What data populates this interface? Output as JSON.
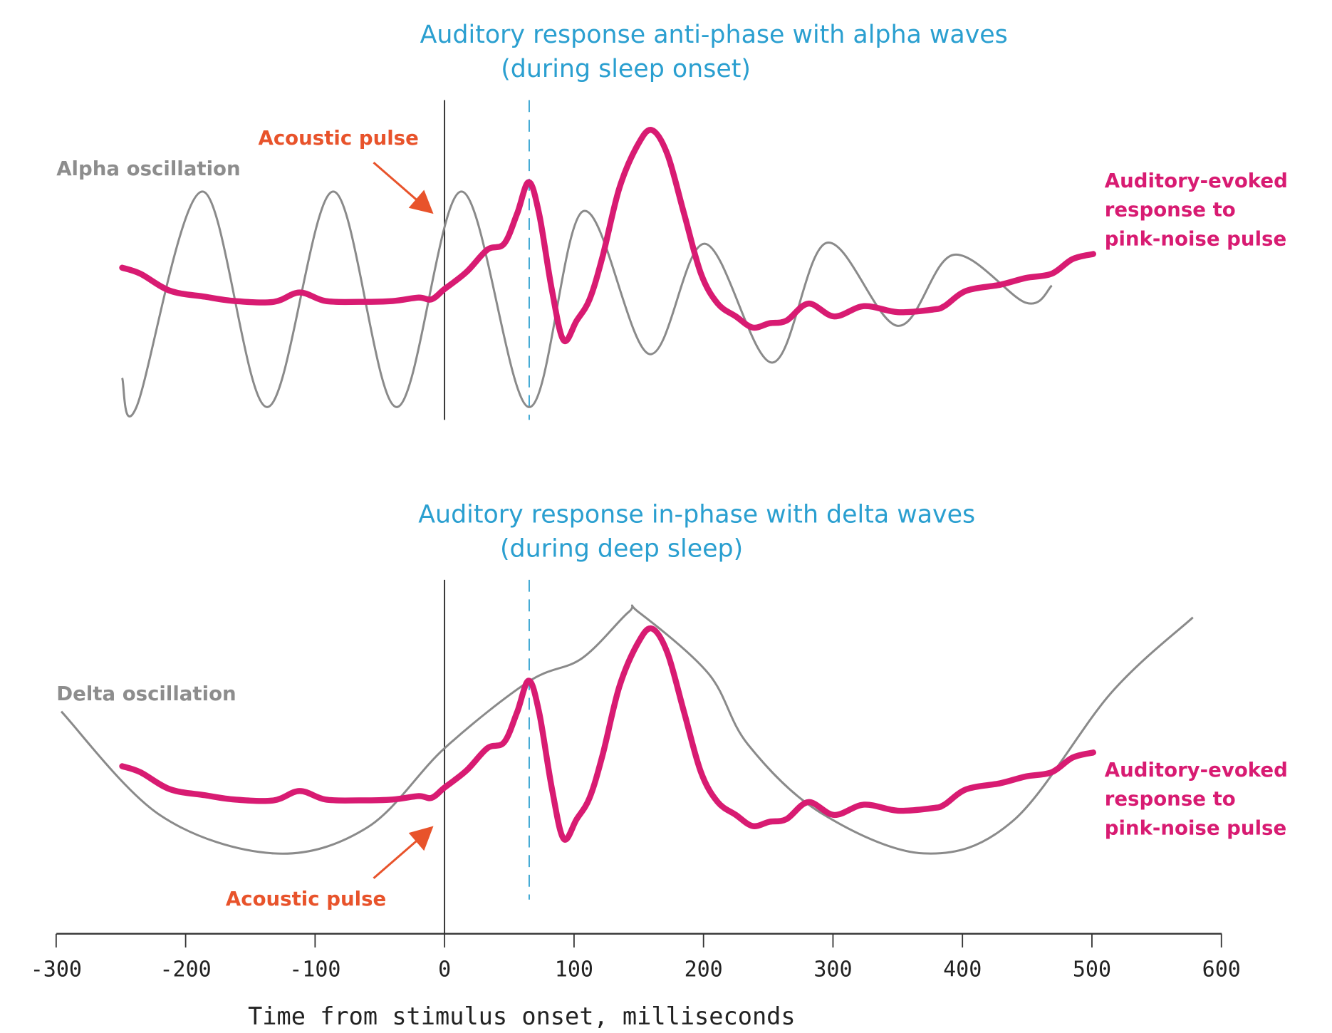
{
  "chart_data": {
    "type": "line",
    "xlabel": "Time from stimulus onset, milliseconds",
    "xlim": [
      -300,
      600
    ],
    "xticks": [
      "-300",
      "-200",
      "-100",
      "0",
      "100",
      "200",
      "300",
      "400",
      "500",
      "600"
    ],
    "grid": false,
    "colors": {
      "title": "#2a9fd0",
      "response": "#d81b72",
      "oscillation": "#8a8a8a",
      "pulse": "#e8532b",
      "marker": "#222222"
    },
    "stimulus_onset_ms": 0,
    "response_peak_marker_ms": 65,
    "response": {
      "name": "Auditory-evoked response to pink-noise pulse",
      "x": [
        -249,
        -235,
        -212,
        -185,
        -162,
        -132,
        -112,
        -92,
        -66,
        -40,
        -20,
        -10,
        0,
        17,
        33,
        46,
        56,
        65,
        73,
        83,
        92,
        102,
        112,
        122,
        135,
        149,
        160,
        172,
        185,
        198,
        211,
        225,
        238,
        251,
        264,
        281,
        301,
        324,
        350,
        377,
        386,
        403,
        429,
        449,
        469,
        485,
        501
      ],
      "y": [
        3.7,
        3.0,
        1.0,
        0.3,
        -0.2,
        -0.3,
        0.8,
        -0.2,
        -0.3,
        -0.2,
        0.2,
        0,
        1.2,
        3.2,
        5.8,
        6.5,
        10.0,
        13.7,
        10.0,
        1.0,
        -4.8,
        -2.5,
        0,
        5.0,
        13.0,
        18.0,
        19.8,
        17.0,
        10.0,
        3.0,
        -0.5,
        -2.0,
        -3.3,
        -2.8,
        -2.5,
        -0.5,
        -2.0,
        -0.8,
        -1.5,
        -1.2,
        -0.8,
        1.0,
        1.7,
        2.5,
        3.0,
        4.7,
        5.3
      ]
    },
    "panels": [
      {
        "title": "Auditory response anti-phase with alpha waves",
        "subtitle": "(during sleep onset)",
        "oscillation_label": "Alpha oscillation",
        "pulse_label": "Acoustic pulse",
        "response_label": [
          "Auditory-evoked",
          "response to",
          "pink-noise pulse"
        ],
        "oscillation": {
          "name": "Alpha oscillation",
          "x": [
            -249,
            -238,
            -187,
            -137,
            -86,
            -37,
            13,
            65,
            107,
            158,
            201,
            253,
            295,
            350,
            393,
            449,
            469
          ],
          "y": [
            -9.2,
            -12.6,
            12.6,
            -12.6,
            12.6,
            -12.6,
            12.6,
            -12.6,
            10.3,
            -6.4,
            6.5,
            -7.4,
            6.6,
            -3.1,
            5.2,
            -0.4,
            1.6
          ]
        }
      },
      {
        "title": "Auditory response in-phase with delta waves",
        "subtitle": "(during deep sleep)",
        "oscillation_label": "Delta oscillation",
        "pulse_label": "Acoustic pulse",
        "response_label": [
          "Auditory-evoked",
          "response to",
          "pink-noise pulse"
        ],
        "oscillation": {
          "name": "Delta oscillation",
          "x": [
            -296,
            -220,
            -132,
            -60,
            0,
            65,
            106,
            142,
            150,
            204,
            234,
            290,
            370,
            439,
            515,
            578
          ],
          "y": [
            10.1,
            -2.0,
            -6.5,
            -3.5,
            5.8,
            13.6,
            16.3,
            21.7,
            21.7,
            14.5,
            6.3,
            -1.7,
            -6.5,
            -2.7,
            12.3,
            21.1
          ]
        }
      }
    ]
  }
}
